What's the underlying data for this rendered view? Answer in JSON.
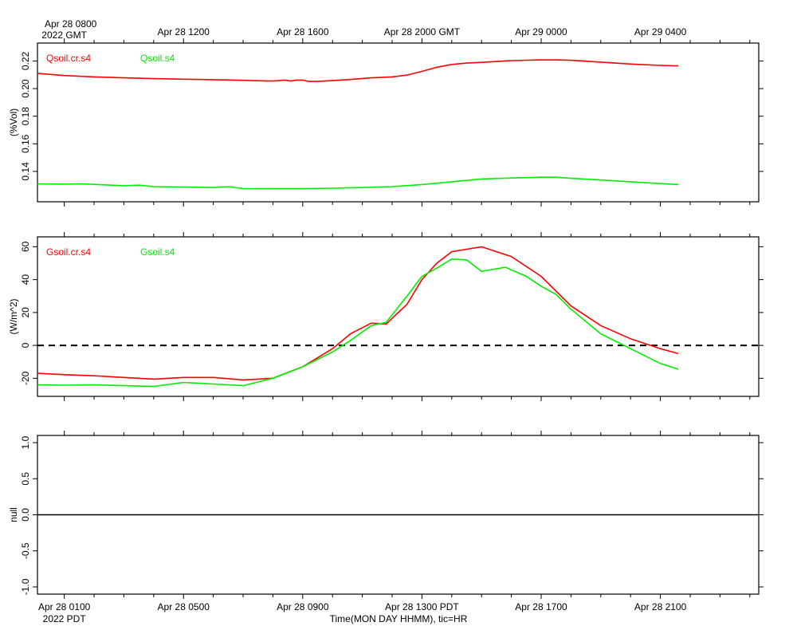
{
  "chart_data": {
    "type": "line",
    "x_unit": "hours since Apr 28 0100 PDT",
    "x_range": [
      -0.9,
      23.3
    ],
    "top_axis": {
      "line1": [
        "Apr 28 0800",
        "Apr 28 1200",
        "Apr 28 1600",
        "Apr 28 2000 GMT",
        "Apr 29 0000",
        "Apr 29 0400"
      ],
      "line2_first": "2022 GMT",
      "positions": [
        0,
        4,
        8,
        12,
        16,
        20
      ]
    },
    "bottom_axis": {
      "labels": [
        "Apr 28 0100",
        "Apr 28 0500",
        "Apr 28 0900",
        "Apr 28 1300 PDT",
        "Apr 28 1700",
        "Apr 28 2100"
      ],
      "line2_first": "2022 PDT",
      "positions": [
        0,
        4,
        8,
        12,
        16,
        20
      ],
      "title": "Time(MON DAY HHMM), tic=HR"
    },
    "panels": [
      {
        "ylabel": "(%Vol)",
        "ylim": [
          0.118,
          0.233
        ],
        "yticks": [
          0.14,
          0.16,
          0.18,
          0.2,
          0.22
        ],
        "ytick_labels": [
          "0.14",
          "0.16",
          "0.18",
          "0.20",
          "0.22"
        ],
        "zero_line": false,
        "series": [
          {
            "name": "Qsoil.cr.s4",
            "color": "#ff0000",
            "x": [
              -0.9,
              0,
              1,
              2,
              3,
              4,
              5,
              6,
              6.5,
              6.8,
              7,
              7.2,
              7.4,
              7.6,
              7.8,
              8,
              8.2,
              8.5,
              9,
              9.5,
              10.3,
              null,
              10.3,
              11,
              11.5,
              12,
              12.5,
              13,
              13.5,
              14,
              15,
              16,
              16.5,
              17,
              18,
              19,
              20,
              20.6
            ],
            "y": [
              0.211,
              0.2095,
              0.2085,
              0.2078,
              0.2072,
              0.2068,
              0.2065,
              0.206,
              0.2057,
              0.2055,
              0.2055,
              0.2058,
              0.2062,
              0.2055,
              0.2062,
              0.2062,
              0.2052,
              0.2052,
              0.2058,
              0.2065,
              0.2078,
              null,
              0.2078,
              0.2085,
              0.2098,
              0.2125,
              0.2155,
              0.2175,
              0.2185,
              0.219,
              0.2203,
              0.2208,
              0.2208,
              0.2205,
              0.2192,
              0.2178,
              0.2168,
              0.2165
            ]
          },
          {
            "name": "Qsoil.s4",
            "color": "#00ee00",
            "x": [
              -0.9,
              0,
              0.5,
              1,
              2,
              2.5,
              3,
              4,
              5,
              5.5,
              6,
              7,
              8,
              9,
              10.3,
              null,
              10.3,
              11,
              12,
              13,
              14,
              15,
              16,
              16.5,
              17,
              18,
              19,
              20,
              20.6
            ],
            "y": [
              0.131,
              0.1308,
              0.131,
              0.1306,
              0.1296,
              0.13,
              0.129,
              0.1287,
              0.1283,
              0.129,
              0.1276,
              0.1275,
              0.1275,
              0.1278,
              0.1285,
              null,
              0.1285,
              0.129,
              0.1305,
              0.1325,
              0.1345,
              0.1352,
              0.1358,
              0.1358,
              0.135,
              0.1338,
              0.1325,
              0.1312,
              0.1305
            ]
          }
        ]
      },
      {
        "ylabel": "(W/m^2)",
        "ylim": [
          -31,
          66
        ],
        "yticks": [
          -20,
          0,
          20,
          40,
          60
        ],
        "ytick_labels": [
          "-20",
          "0",
          "20",
          "40",
          "60"
        ],
        "zero_line": true,
        "series": [
          {
            "name": "Gsoil.cr.s4",
            "color": "#ff0000",
            "x": [
              -0.9,
              0,
              1,
              2,
              3,
              4,
              5,
              6,
              7,
              8,
              9,
              9.6,
              10.3,
              null,
              10.3,
              10.8,
              11.5,
              12,
              12.5,
              13,
              14,
              15,
              16,
              17,
              18,
              19,
              20,
              20.6
            ],
            "y": [
              -17,
              -17.8,
              -18.5,
              -19.5,
              -20.5,
              -19.5,
              -19.5,
              -21,
              -20,
              -13,
              -2,
              7,
              13.5,
              null,
              13.5,
              13,
              25,
              40,
              50,
              57,
              60,
              54,
              42,
              24,
              12,
              4,
              -2,
              -5
            ]
          },
          {
            "name": "Gsoil.s4",
            "color": "#00ee00",
            "x": [
              -0.9,
              0,
              1,
              2,
              3,
              4,
              5,
              6,
              7,
              8,
              9,
              9.6,
              10.3,
              null,
              10.3,
              10.8,
              11.5,
              12,
              12.5,
              13,
              13.5,
              14,
              14.8,
              15.5,
              16,
              16.5,
              17,
              18,
              19,
              20,
              20.6
            ],
            "y": [
              -24,
              -24.2,
              -24,
              -24.5,
              -25,
              -22.5,
              -23.5,
              -24.5,
              -20,
              -13,
              -4,
              3,
              12,
              null,
              12,
              14,
              30,
              42,
              47,
              52.5,
              52,
              45,
              47.5,
              42,
              36,
              31,
              22,
              7,
              -2,
              -11,
              -14.5
            ]
          }
        ]
      },
      {
        "ylabel": "null",
        "ylim": [
          -1.1,
          1.1
        ],
        "yticks": [
          -1,
          -0.5,
          0,
          0.5,
          1
        ],
        "ytick_labels": [
          "-1.0",
          "-0.5",
          "0.0",
          "0.5",
          "1.0"
        ],
        "zero_line": false,
        "baseline": 0,
        "series": []
      }
    ]
  }
}
